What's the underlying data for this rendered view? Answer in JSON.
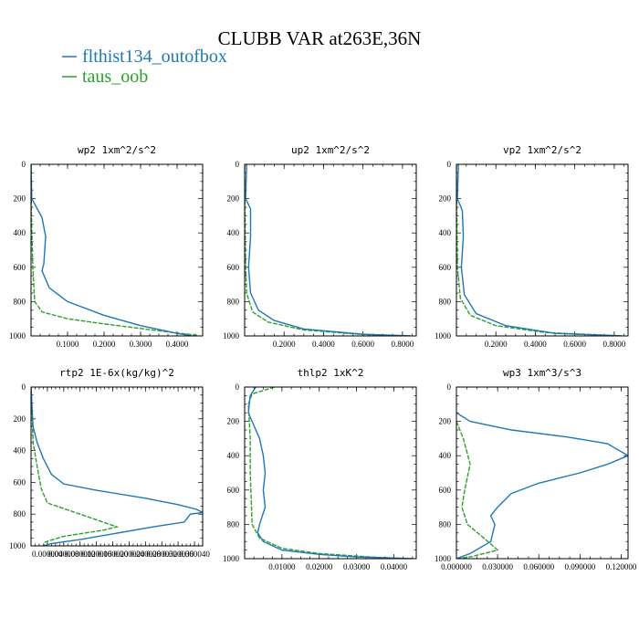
{
  "title": "CLUBB VAR at263E,36N",
  "legend": [
    {
      "label": "flthist134_outofbox",
      "color": "#1f77b4",
      "dash": "solid"
    },
    {
      "label": "taus_oob",
      "color": "#2ca02c",
      "dash": "dashed"
    }
  ],
  "chart_data": [
    {
      "type": "line",
      "title": "wp2  1xm^2/s^2",
      "ylim": [
        1000,
        0
      ],
      "yticks": [
        0,
        200,
        400,
        600,
        800,
        1000
      ],
      "xlim": [
        0,
        0.47
      ],
      "xticks": [
        0.1,
        0.2,
        0.3,
        0.4
      ],
      "xticklabels": [
        "0.1000",
        "0.2000",
        "0.3000",
        "0.4000"
      ],
      "series": [
        {
          "name": "flthist134_outofbox",
          "points": [
            [
              0,
              0
            ],
            [
              0.002,
              200
            ],
            [
              0.03,
              310
            ],
            [
              0.04,
              420
            ],
            [
              0.035,
              580
            ],
            [
              0.03,
              620
            ],
            [
              0.05,
              720
            ],
            [
              0.1,
              800
            ],
            [
              0.2,
              880
            ],
            [
              0.3,
              940
            ],
            [
              0.4,
              985
            ],
            [
              0.44,
              1000
            ]
          ]
        },
        {
          "name": "taus_oob",
          "points": [
            [
              0,
              0
            ],
            [
              0.001,
              300
            ],
            [
              0.005,
              600
            ],
            [
              0.01,
              800
            ],
            [
              0.03,
              860
            ],
            [
              0.1,
              900
            ],
            [
              0.2,
              930
            ],
            [
              0.35,
              970
            ],
            [
              0.45,
              995
            ],
            [
              0.46,
              1000
            ]
          ]
        }
      ]
    },
    {
      "type": "line",
      "title": "up2  1xm^2/s^2",
      "ylim": [
        1000,
        0
      ],
      "yticks": [
        0,
        200,
        400,
        600,
        800,
        1000
      ],
      "xlim": [
        0,
        0.87
      ],
      "xticks": [
        0.2,
        0.4,
        0.6,
        0.8
      ],
      "xticklabels": [
        "0.2000",
        "0.4000",
        "0.6000",
        "0.8000"
      ],
      "series": [
        {
          "name": "flthist134_outofbox",
          "points": [
            [
              0.01,
              0
            ],
            [
              0.005,
              200
            ],
            [
              0.03,
              260
            ],
            [
              0.03,
              420
            ],
            [
              0.02,
              600
            ],
            [
              0.03,
              750
            ],
            [
              0.07,
              850
            ],
            [
              0.15,
              910
            ],
            [
              0.3,
              960
            ],
            [
              0.6,
              990
            ],
            [
              0.84,
              1000
            ]
          ]
        },
        {
          "name": "taus_oob",
          "points": [
            [
              0,
              0
            ],
            [
              0.002,
              300
            ],
            [
              0.005,
              600
            ],
            [
              0.01,
              750
            ],
            [
              0.04,
              860
            ],
            [
              0.12,
              920
            ],
            [
              0.3,
              965
            ],
            [
              0.6,
              992
            ],
            [
              0.84,
              1000
            ]
          ]
        }
      ]
    },
    {
      "type": "line",
      "title": "vp2  1xm^2/s^2",
      "ylim": [
        1000,
        0
      ],
      "yticks": [
        0,
        200,
        400,
        600,
        800,
        1000
      ],
      "xlim": [
        0,
        0.87
      ],
      "xticks": [
        0.2,
        0.4,
        0.6,
        0.8
      ],
      "xticklabels": [
        "0.2000",
        "0.4000",
        "0.6000",
        "0.8000"
      ],
      "series": [
        {
          "name": "flthist134_outofbox",
          "points": [
            [
              0.01,
              0
            ],
            [
              0.005,
              200
            ],
            [
              0.03,
              270
            ],
            [
              0.035,
              420
            ],
            [
              0.025,
              600
            ],
            [
              0.04,
              760
            ],
            [
              0.1,
              870
            ],
            [
              0.25,
              940
            ],
            [
              0.5,
              985
            ],
            [
              0.84,
              1000
            ]
          ]
        },
        {
          "name": "taus_oob",
          "points": [
            [
              0,
              0
            ],
            [
              0.002,
              300
            ],
            [
              0.005,
              600
            ],
            [
              0.02,
              780
            ],
            [
              0.07,
              880
            ],
            [
              0.2,
              940
            ],
            [
              0.45,
              980
            ],
            [
              0.84,
              1000
            ]
          ]
        }
      ]
    },
    {
      "type": "line",
      "title": "rtp2  1E-6x(kg/kg)^2",
      "ylim": [
        1000,
        0
      ],
      "yticks": [
        0,
        200,
        400,
        600,
        800,
        1000
      ],
      "xlim": [
        0,
        4.2e-05
      ],
      "xticks": [
        4e-06,
        8e-06,
        1.2e-05,
        1.6e-05,
        2e-05,
        2.4e-05,
        2.8e-05,
        3.2e-05,
        3.6e-05,
        4e-05
      ],
      "xticklabels": [
        "0.000004",
        "0.000008",
        "0.000012",
        "0.000016",
        "0.000020",
        "0.000024",
        "0.000028",
        "0.000032",
        "0.000036",
        "0.000040"
      ],
      "series": [
        {
          "name": "flthist134_outofbox",
          "points": [
            [
              0,
              0
            ],
            [
              5e-07,
              250
            ],
            [
              1.5e-06,
              350
            ],
            [
              3e-06,
              450
            ],
            [
              5e-06,
              550
            ],
            [
              8e-06,
              610
            ],
            [
              1.6e-05,
              650
            ],
            [
              2.8e-05,
              700
            ],
            [
              3.6e-05,
              740
            ],
            [
              4.05e-05,
              770
            ],
            [
              4.2e-05,
              790
            ],
            [
              3.9e-05,
              800
            ],
            [
              3.75e-05,
              850
            ],
            [
              3e-05,
              880
            ],
            [
              1.2e-05,
              960
            ],
            [
              5e-06,
              985
            ],
            [
              3e-06,
              1000
            ]
          ]
        },
        {
          "name": "taus_oob",
          "points": [
            [
              0,
              0
            ],
            [
              5e-07,
              350
            ],
            [
              1.5e-06,
              500
            ],
            [
              2.5e-06,
              640
            ],
            [
              4e-06,
              730
            ],
            [
              1.2e-05,
              800
            ],
            [
              2.1e-05,
              880
            ],
            [
              1.8e-05,
              900
            ],
            [
              8e-06,
              940
            ],
            [
              3.5e-06,
              975
            ],
            [
              3e-06,
              1000
            ]
          ]
        }
      ]
    },
    {
      "type": "line",
      "title": "thlp2  1xK^2",
      "ylim": [
        1000,
        0
      ],
      "yticks": [
        0,
        200,
        400,
        600,
        800,
        1000
      ],
      "xlim": [
        0,
        0.046
      ],
      "xticks": [
        0.01,
        0.02,
        0.03,
        0.04
      ],
      "xticklabels": [
        "0.01000",
        "0.02000",
        "0.03000",
        "0.04000"
      ],
      "series": [
        {
          "name": "flthist134_outofbox",
          "points": [
            [
              0.003,
              0
            ],
            [
              0.0015,
              50
            ],
            [
              0.001,
              150
            ],
            [
              0.002,
              200
            ],
            [
              0.004,
              300
            ],
            [
              0.005,
              400
            ],
            [
              0.0055,
              500
            ],
            [
              0.005,
              600
            ],
            [
              0.0055,
              700
            ],
            [
              0.004,
              800
            ],
            [
              0.0035,
              850
            ],
            [
              0.005,
              900
            ],
            [
              0.01,
              950
            ],
            [
              0.02,
              975
            ],
            [
              0.03,
              990
            ],
            [
              0.045,
              1000
            ]
          ]
        },
        {
          "name": "taus_oob",
          "points": [
            [
              0.008,
              0
            ],
            [
              0.002,
              40
            ],
            [
              0.001,
              100
            ],
            [
              0.0015,
              300
            ],
            [
              0.0015,
              500
            ],
            [
              0.002,
              800
            ],
            [
              0.004,
              880
            ],
            [
              0.01,
              940
            ],
            [
              0.02,
              970
            ],
            [
              0.035,
              992
            ],
            [
              0.045,
              1000
            ]
          ]
        }
      ]
    },
    {
      "type": "line",
      "title": "wp3  1xm^3/s^3",
      "ylim": [
        1000,
        0
      ],
      "yticks": [
        0,
        200,
        400,
        600,
        800,
        1000
      ],
      "xlim": [
        0,
        0.125
      ],
      "xticks": [
        0,
        0.03,
        0.06,
        0.09,
        0.12
      ],
      "xticklabels": [
        "0.000000",
        "0.030000",
        "0.060000",
        "0.090000",
        "0.120000"
      ],
      "series": [
        {
          "name": "flthist134_outofbox",
          "points": [
            [
              0,
              150
            ],
            [
              0.01,
              200
            ],
            [
              0.04,
              250
            ],
            [
              0.08,
              290
            ],
            [
              0.11,
              330
            ],
            [
              0.125,
              400
            ],
            [
              0.11,
              450
            ],
            [
              0.09,
              500
            ],
            [
              0.06,
              560
            ],
            [
              0.04,
              620
            ],
            [
              0.03,
              700
            ],
            [
              0.025,
              750
            ],
            [
              0.028,
              800
            ],
            [
              0.025,
              900
            ],
            [
              0.01,
              970
            ],
            [
              0,
              1000
            ]
          ]
        },
        {
          "name": "taus_oob",
          "points": [
            [
              0,
              200
            ],
            [
              0.005,
              300
            ],
            [
              0.01,
              450
            ],
            [
              0.006,
              600
            ],
            [
              0.004,
              700
            ],
            [
              0.008,
              800
            ],
            [
              0.02,
              880
            ],
            [
              0.03,
              950
            ],
            [
              0.01,
              990
            ],
            [
              0,
              1000
            ]
          ]
        }
      ]
    }
  ]
}
